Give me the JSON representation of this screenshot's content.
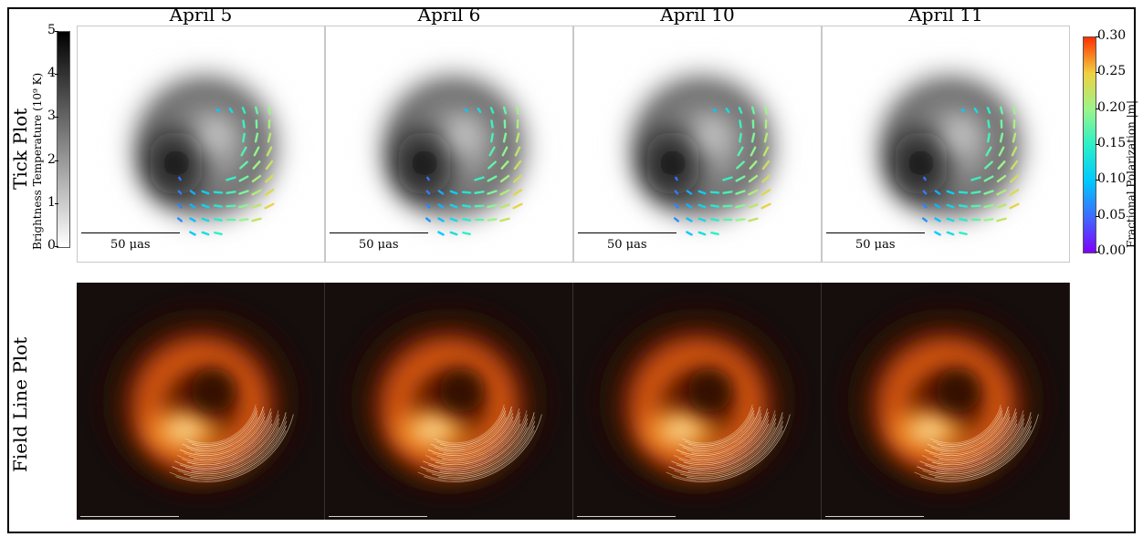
{
  "columns": [
    "April 5",
    "April 6",
    "April 10",
    "April 11"
  ],
  "rows": {
    "tick": "Tick Plot",
    "field": "Field Line Plot"
  },
  "scale_bar": "50 μas",
  "left_colorbar": {
    "label": "Brightness Temperature (10⁹ K)",
    "ticks": [
      "0",
      "1",
      "2",
      "3",
      "4",
      "5"
    ],
    "range": [
      0,
      5.4
    ],
    "colors": {
      "low": "#ffffff",
      "high": "#000000"
    }
  },
  "right_colorbar": {
    "label": "Fractional Polarization |m|",
    "ticks": [
      "0.00",
      "0.05",
      "0.10",
      "0.15",
      "0.20",
      "0.25",
      "0.30"
    ],
    "range": [
      0,
      0.3
    ],
    "colormap": [
      "#7f00ff",
      "#3d6bff",
      "#00c8ff",
      "#2af0c8",
      "#9cf58a",
      "#f0d040",
      "#ff3000"
    ]
  },
  "icons": {
    "ticks": "polarization-tick-icon",
    "field_lines": "field-line-icon"
  }
}
